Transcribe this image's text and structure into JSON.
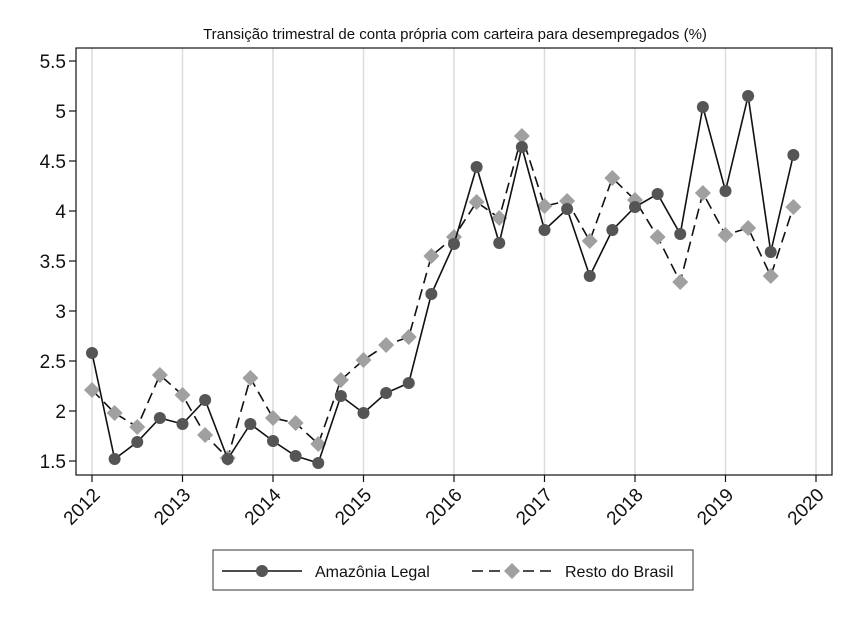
{
  "chart_data": {
    "type": "line",
    "title": "Transição trimestral de conta própria com carteira para desempregados (%)",
    "xlabel": "",
    "ylabel": "",
    "xlim": [
      2012,
      2020
    ],
    "ylim": [
      1.35,
      5.65
    ],
    "x_ticks": [
      2012,
      2013,
      2014,
      2015,
      2016,
      2017,
      2018,
      2019,
      2020
    ],
    "x_tick_labels": [
      "2012",
      "2013",
      "2014",
      "2015",
      "2016",
      "2017",
      "2018",
      "2019",
      "2020"
    ],
    "y_ticks": [
      1.5,
      2,
      2.5,
      3,
      3.5,
      4,
      4.5,
      5,
      5.5
    ],
    "y_tick_labels": [
      "1.5",
      "2",
      "2.5",
      "3",
      "3.5",
      "4",
      "4.5",
      "5",
      "5.5"
    ],
    "grid": "vertical",
    "legend_position": "bottom",
    "x": [
      2012.0,
      2012.25,
      2012.5,
      2012.75,
      2013.0,
      2013.25,
      2013.5,
      2013.75,
      2014.0,
      2014.25,
      2014.5,
      2014.75,
      2015.0,
      2015.25,
      2015.5,
      2015.75,
      2016.0,
      2016.25,
      2016.5,
      2016.75,
      2017.0,
      2017.25,
      2017.5,
      2017.75,
      2018.0,
      2018.25,
      2018.5,
      2018.75,
      2019.0,
      2019.25,
      2019.5,
      2019.75
    ],
    "series": [
      {
        "name": "Amazônia Legal",
        "color": "#555555",
        "line": "solid",
        "marker": "circle",
        "values": [
          2.58,
          1.52,
          1.69,
          1.93,
          1.87,
          2.11,
          1.52,
          1.87,
          1.7,
          1.55,
          1.48,
          2.15,
          1.98,
          2.18,
          2.28,
          3.17,
          3.67,
          4.44,
          3.68,
          4.64,
          3.81,
          4.02,
          3.35,
          3.81,
          4.04,
          4.17,
          3.77,
          5.04,
          4.2,
          5.15,
          3.59,
          4.56
        ]
      },
      {
        "name": "Resto do Brasil",
        "color": "#a0a0a0",
        "line": "dashed",
        "marker": "diamond",
        "values": [
          2.21,
          1.98,
          1.84,
          2.36,
          2.16,
          1.76,
          1.53,
          2.33,
          1.93,
          1.88,
          1.67,
          2.31,
          2.51,
          2.66,
          2.74,
          3.55,
          3.74,
          4.09,
          3.93,
          4.75,
          4.05,
          4.1,
          3.7,
          4.33,
          4.11,
          3.74,
          3.29,
          4.18,
          3.76,
          3.83,
          3.35,
          4.04
        ]
      }
    ]
  }
}
